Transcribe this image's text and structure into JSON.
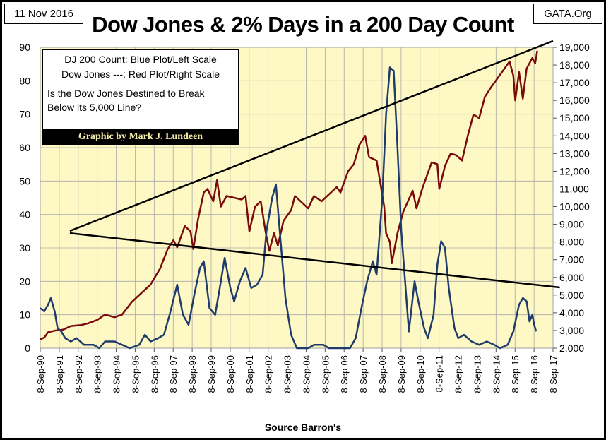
{
  "header": {
    "date": "11 Nov 2016",
    "site": "GATA.Org"
  },
  "legend": {
    "line1": "DJ 200 Count: Blue Plot/Left Scale",
    "line2": "Dow Jones ---: Red Plot/Right Scale",
    "line3": "Is the Dow Jones Destined to Break",
    "line4": "Below its 5,000 Line?",
    "credit": "Graphic by Mark J. Lundeen"
  },
  "chart_data": {
    "type": "line",
    "title": "Dow Jones & 2% Days in a 200 Day Count",
    "xlabel": "Source Barron's",
    "x_ticks": [
      "8-Sep-90",
      "8-Sep-91",
      "8-Sep-92",
      "8-Sep-93",
      "8-Sep-94",
      "8-Sep-95",
      "8-Sep-96",
      "8-Sep-97",
      "8-Sep-98",
      "8-Sep-99",
      "8-Sep-00",
      "8-Sep-01",
      "8-Sep-02",
      "8-Sep-03",
      "8-Sep-04",
      "8-Sep-05",
      "8-Sep-06",
      "8-Sep-07",
      "8-Sep-08",
      "8-Sep-09",
      "8-Sep-10",
      "8-Sep-11",
      "8-Sep-12",
      "8-Sep-13",
      "8-Sep-14",
      "8-Sep-15",
      "8-Sep-16",
      "8-Sep-17"
    ],
    "xlim": [
      1990.69,
      2017.69
    ],
    "y_left": {
      "lim": [
        0,
        90
      ],
      "ticks": [
        "0",
        "10",
        "20",
        "30",
        "40",
        "50",
        "60",
        "70",
        "80",
        "90"
      ]
    },
    "y_right": {
      "lim": [
        2000,
        19000
      ],
      "ticks": [
        "2,000",
        "3,000",
        "4,000",
        "5,000",
        "6,000",
        "7,000",
        "8,000",
        "9,000",
        "10,000",
        "11,000",
        "12,000",
        "13,000",
        "14,000",
        "15,000",
        "16,000",
        "17,000",
        "18,000",
        "19,000"
      ]
    },
    "grid": true,
    "series": [
      {
        "name": "DJ 200 Count",
        "axis": "left",
        "color": "#1f3b6b",
        "points": [
          [
            1990.69,
            12
          ],
          [
            1990.9,
            11
          ],
          [
            1991.1,
            13
          ],
          [
            1991.25,
            15
          ],
          [
            1991.45,
            11
          ],
          [
            1991.6,
            6
          ],
          [
            1991.8,
            5
          ],
          [
            1992.0,
            3
          ],
          [
            1992.3,
            2
          ],
          [
            1992.6,
            3
          ],
          [
            1993.0,
            1
          ],
          [
            1993.5,
            1
          ],
          [
            1993.8,
            0
          ],
          [
            1994.1,
            2
          ],
          [
            1994.6,
            2
          ],
          [
            1995.0,
            1
          ],
          [
            1995.4,
            0
          ],
          [
            1995.9,
            1
          ],
          [
            1996.2,
            4
          ],
          [
            1996.5,
            2
          ],
          [
            1996.9,
            3
          ],
          [
            1997.2,
            4
          ],
          [
            1997.5,
            10
          ],
          [
            1997.9,
            19
          ],
          [
            1998.2,
            10
          ],
          [
            1998.5,
            7
          ],
          [
            1998.8,
            16
          ],
          [
            1999.1,
            24
          ],
          [
            1999.3,
            26
          ],
          [
            1999.6,
            12
          ],
          [
            1999.9,
            10
          ],
          [
            2000.2,
            20
          ],
          [
            2000.4,
            27
          ],
          [
            2000.7,
            18
          ],
          [
            2000.9,
            14
          ],
          [
            2001.2,
            20
          ],
          [
            2001.5,
            24
          ],
          [
            2001.8,
            18
          ],
          [
            2002.1,
            19
          ],
          [
            2002.4,
            22
          ],
          [
            2002.6,
            35
          ],
          [
            2002.9,
            45
          ],
          [
            2003.1,
            49
          ],
          [
            2003.3,
            35
          ],
          [
            2003.6,
            15
          ],
          [
            2003.9,
            4
          ],
          [
            2004.2,
            0
          ],
          [
            2004.8,
            0
          ],
          [
            2005.1,
            1
          ],
          [
            2005.6,
            1
          ],
          [
            2005.9,
            0
          ],
          [
            2006.5,
            0
          ],
          [
            2007.0,
            0
          ],
          [
            2007.3,
            3
          ],
          [
            2007.6,
            12
          ],
          [
            2007.9,
            20
          ],
          [
            2008.2,
            26
          ],
          [
            2008.4,
            22
          ],
          [
            2008.7,
            45
          ],
          [
            2008.9,
            70
          ],
          [
            2009.1,
            84
          ],
          [
            2009.3,
            83
          ],
          [
            2009.5,
            60
          ],
          [
            2009.7,
            35
          ],
          [
            2009.9,
            20
          ],
          [
            2010.1,
            5
          ],
          [
            2010.4,
            20
          ],
          [
            2010.6,
            14
          ],
          [
            2010.9,
            6
          ],
          [
            2011.1,
            3
          ],
          [
            2011.4,
            10
          ],
          [
            2011.6,
            25
          ],
          [
            2011.8,
            32
          ],
          [
            2012.0,
            30
          ],
          [
            2012.2,
            18
          ],
          [
            2012.5,
            6
          ],
          [
            2012.7,
            3
          ],
          [
            2013.0,
            4
          ],
          [
            2013.4,
            2
          ],
          [
            2013.8,
            1
          ],
          [
            2014.2,
            2
          ],
          [
            2014.6,
            1
          ],
          [
            2014.9,
            0
          ],
          [
            2015.3,
            1
          ],
          [
            2015.6,
            5
          ],
          [
            2015.9,
            13
          ],
          [
            2016.1,
            15
          ],
          [
            2016.3,
            14
          ],
          [
            2016.45,
            8
          ],
          [
            2016.6,
            10
          ],
          [
            2016.7,
            7
          ],
          [
            2016.8,
            5
          ]
        ]
      },
      {
        "name": "Dow Jones",
        "axis": "right",
        "color": "#7a0a0a",
        "points": [
          [
            1990.69,
            2500
          ],
          [
            1990.9,
            2600
          ],
          [
            1991.1,
            2900
          ],
          [
            1991.5,
            3000
          ],
          [
            1991.9,
            3050
          ],
          [
            1992.3,
            3250
          ],
          [
            1992.8,
            3300
          ],
          [
            1993.2,
            3400
          ],
          [
            1993.7,
            3600
          ],
          [
            1994.1,
            3900
          ],
          [
            1994.6,
            3750
          ],
          [
            1995.0,
            3900
          ],
          [
            1995.5,
            4600
          ],
          [
            1996.0,
            5100
          ],
          [
            1996.5,
            5600
          ],
          [
            1997.0,
            6500
          ],
          [
            1997.4,
            7600
          ],
          [
            1997.7,
            8100
          ],
          [
            1997.9,
            7700
          ],
          [
            1998.3,
            8900
          ],
          [
            1998.6,
            8600
          ],
          [
            1998.75,
            7600
          ],
          [
            1999.0,
            9300
          ],
          [
            1999.3,
            10800
          ],
          [
            1999.5,
            11000
          ],
          [
            1999.8,
            10300
          ],
          [
            2000.0,
            11500
          ],
          [
            2000.2,
            10000
          ],
          [
            2000.5,
            10600
          ],
          [
            2000.9,
            10500
          ],
          [
            2001.3,
            10400
          ],
          [
            2001.5,
            10600
          ],
          [
            2001.7,
            8600
          ],
          [
            2002.0,
            10000
          ],
          [
            2002.3,
            10300
          ],
          [
            2002.55,
            8600
          ],
          [
            2002.75,
            7500
          ],
          [
            2003.0,
            8500
          ],
          [
            2003.2,
            7800
          ],
          [
            2003.5,
            9200
          ],
          [
            2003.9,
            9800
          ],
          [
            2004.1,
            10600
          ],
          [
            2004.5,
            10200
          ],
          [
            2004.8,
            9900
          ],
          [
            2005.1,
            10600
          ],
          [
            2005.5,
            10300
          ],
          [
            2005.9,
            10700
          ],
          [
            2006.3,
            11100
          ],
          [
            2006.5,
            10800
          ],
          [
            2006.9,
            12000
          ],
          [
            2007.2,
            12400
          ],
          [
            2007.5,
            13500
          ],
          [
            2007.8,
            14000
          ],
          [
            2008.0,
            12800
          ],
          [
            2008.4,
            12600
          ],
          [
            2008.6,
            11300
          ],
          [
            2008.8,
            10000
          ],
          [
            2008.9,
            8500
          ],
          [
            2009.1,
            8000
          ],
          [
            2009.2,
            6800
          ],
          [
            2009.5,
            8500
          ],
          [
            2009.8,
            9700
          ],
          [
            2010.3,
            10900
          ],
          [
            2010.5,
            9900
          ],
          [
            2010.8,
            11000
          ],
          [
            2011.3,
            12500
          ],
          [
            2011.6,
            12400
          ],
          [
            2011.7,
            11000
          ],
          [
            2012.0,
            12300
          ],
          [
            2012.3,
            13000
          ],
          [
            2012.6,
            12900
          ],
          [
            2012.9,
            12600
          ],
          [
            2013.2,
            14000
          ],
          [
            2013.5,
            15200
          ],
          [
            2013.8,
            15000
          ],
          [
            2014.1,
            16200
          ],
          [
            2014.4,
            16700
          ],
          [
            2014.8,
            17300
          ],
          [
            2015.2,
            17900
          ],
          [
            2015.4,
            18200
          ],
          [
            2015.6,
            17400
          ],
          [
            2015.7,
            16000
          ],
          [
            2015.9,
            17600
          ],
          [
            2016.1,
            16100
          ],
          [
            2016.3,
            17800
          ],
          [
            2016.6,
            18400
          ],
          [
            2016.75,
            18100
          ],
          [
            2016.86,
            18800
          ]
        ]
      }
    ],
    "trend_lines": [
      {
        "axis": "right",
        "from": [
          1992.25,
          8625
        ],
        "to": [
          2017.69,
          19360
        ]
      },
      {
        "axis": "right",
        "from": [
          1992.25,
          8500
        ],
        "to": [
          2018.05,
          5430
        ]
      }
    ]
  }
}
